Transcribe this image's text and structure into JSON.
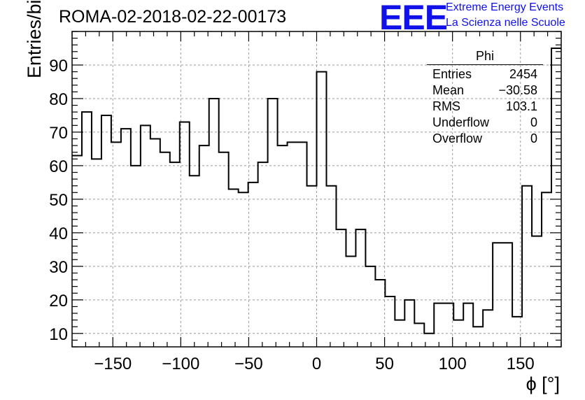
{
  "title": "ROMA-02-2018-02-22-00173",
  "logo": {
    "mark": "EEE",
    "line1": "Extreme Energy Events",
    "line2": "La Scienza nelle Scuole",
    "color": "#1010e8"
  },
  "stats": {
    "name": "Phi",
    "rows": [
      {
        "label": "Entries",
        "value": "2454"
      },
      {
        "label": "Mean",
        "value": "−30.58"
      },
      {
        "label": "RMS",
        "value": "103.1"
      },
      {
        "label": "Underflow",
        "value": "0"
      },
      {
        "label": "Overflow",
        "value": "0"
      }
    ]
  },
  "chart_data": {
    "type": "bar",
    "style": "step-histogram",
    "title": "ROMA-02-2018-02-22-00173",
    "xlabel": "ϕ [°]",
    "ylabel": "Entries/bin",
    "xlim": [
      -180,
      180
    ],
    "ylim": [
      6,
      100
    ],
    "bin_width": 7.2,
    "xticks": [
      -150,
      -100,
      -50,
      0,
      50,
      100,
      150
    ],
    "xtick_labels": [
      "−150",
      "−100",
      "−50",
      "0",
      "50",
      "100",
      "150"
    ],
    "yticks": [
      10,
      20,
      30,
      40,
      50,
      60,
      70,
      80,
      90
    ],
    "yminor_step": 2,
    "xminor_step": 10,
    "grid": true,
    "values": [
      63,
      76,
      62,
      75,
      67,
      71,
      60,
      72,
      68,
      64,
      61,
      73,
      57,
      66,
      80,
      64,
      53,
      52,
      55,
      61,
      80,
      66,
      67,
      67,
      54,
      88,
      54,
      41,
      33,
      41,
      30,
      26,
      21,
      14,
      20,
      13,
      10,
      19,
      19,
      14,
      19,
      12,
      17,
      37,
      37,
      15,
      54,
      39,
      52,
      95
    ]
  }
}
